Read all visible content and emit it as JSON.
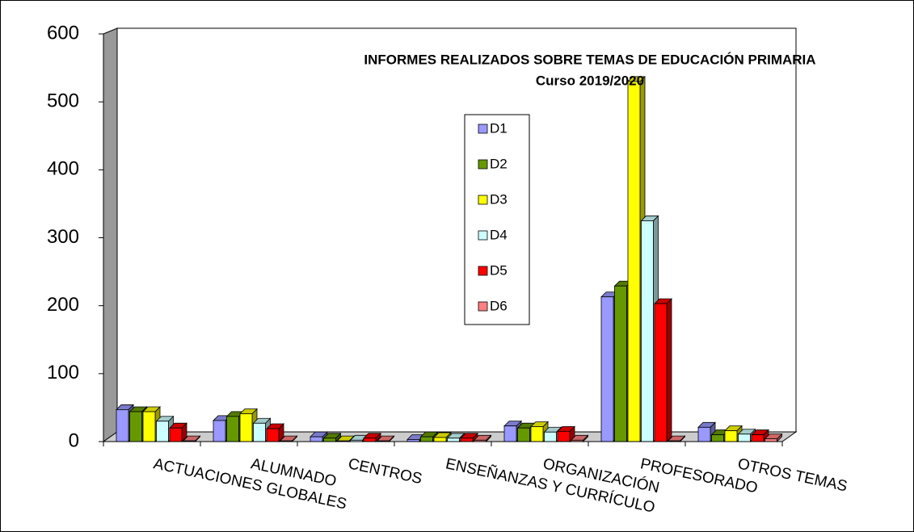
{
  "chart_data": {
    "type": "bar3d",
    "title": "INFORMES REALIZADOS SOBRE TEMAS DE EDUCACIÓN  PRIMARIA",
    "subtitle": "Curso 2019/2020",
    "categories": [
      "ACTUACIONES GLOBALES",
      "ALUMNADO",
      "CENTROS",
      "ENSEÑANZAS Y CURRÍCULO",
      "ORGANIZACIÓN",
      "PROFESORADO",
      "OTROS TEMAS"
    ],
    "series": [
      {
        "name": "D1",
        "color": "#9999ff",
        "values": [
          47,
          31,
          7,
          3,
          23,
          213,
          21
        ]
      },
      {
        "name": "D2",
        "color": "#669900",
        "values": [
          44,
          37,
          5,
          7,
          20,
          229,
          10
        ]
      },
      {
        "name": "D3",
        "color": "#ffff00",
        "values": [
          44,
          41,
          1,
          6,
          22,
          530,
          16
        ]
      },
      {
        "name": "D4",
        "color": "#ccffff",
        "values": [
          30,
          27,
          2,
          5,
          14,
          325,
          11
        ]
      },
      {
        "name": "D5",
        "color": "#ff0000",
        "values": [
          20,
          19,
          5,
          5,
          15,
          203,
          10
        ]
      },
      {
        "name": "D6",
        "color": "#ff8080",
        "values": [
          1,
          1,
          1,
          2,
          2,
          1,
          4
        ]
      }
    ],
    "ylim": [
      0,
      600
    ],
    "yticks": [
      0,
      100,
      200,
      300,
      400,
      500,
      600
    ],
    "grid": false
  }
}
